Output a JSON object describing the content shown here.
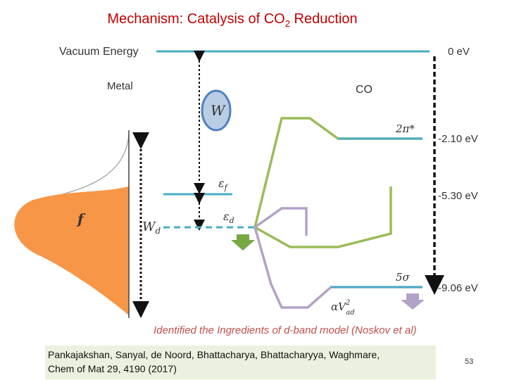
{
  "slide": {
    "title_main": "Mechanism: Catalysis of CO",
    "title_sub": "2",
    "title_tail": " Reduction",
    "page_number": "53"
  },
  "diagram": {
    "vacuum_label": "Vacuum Energy",
    "metal_label": "Metal",
    "co_label": "CO",
    "work_function_symbol": "W",
    "fermi_symbol": "ε",
    "fermi_subscript": "f",
    "d_band_symbol": "ε",
    "d_band_subscript": "d",
    "band_width_symbol": "W",
    "band_width_subscript": "d",
    "occupation_symbol": "f",
    "orbital_2pi": "2π*",
    "orbital_5sigma": "5σ",
    "coupling_label": "αV",
    "coupling_superscript": "2",
    "coupling_subscript": "ad",
    "energy_levels": [
      "0 eV",
      "-2.10 eV",
      "-5.30 eV",
      "-9.06 eV"
    ],
    "colors": {
      "level_line": "#4bacc6",
      "d_band_fill": "#f79646",
      "green": "#9bbb59",
      "purple": "#b3a2c7",
      "work_function_circle": "#b9cde5"
    }
  },
  "caption": "Identified the Ingredients of d-band model (Noskov et al)",
  "citation": {
    "line1": "Pankajakshan, Sanyal, de Noord, Bhattacharya, Bhattacharyya, Waghmare,",
    "line2": "Chem of Mat 29, 4190 (2017)"
  }
}
